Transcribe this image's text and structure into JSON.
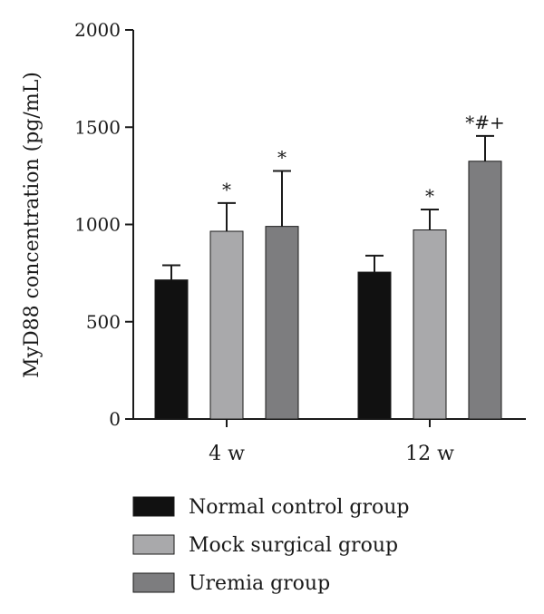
{
  "chart_data": {
    "type": "bar",
    "title": "",
    "xlabel": "",
    "ylabel": "MyD88 concentration (pg/mL)",
    "ylim": [
      0,
      2000
    ],
    "yticks": [
      0,
      500,
      1000,
      1500,
      2000
    ],
    "categories": [
      "4 w",
      "12 w"
    ],
    "series": [
      {
        "name": "Normal control group",
        "color": "#111111",
        "values": [
          715,
          755
        ],
        "errors": [
          75,
          85
        ],
        "labels": [
          "",
          ""
        ]
      },
      {
        "name": "Mock surgical group",
        "color": "#a9a9ab",
        "values": [
          965,
          972
        ],
        "errors": [
          145,
          105
        ],
        "labels": [
          "*",
          "*"
        ]
      },
      {
        "name": "Uremia group",
        "color": "#7d7d7f",
        "values": [
          990,
          1325
        ],
        "errors": [
          285,
          130
        ],
        "labels": [
          "*",
          "*#+"
        ]
      }
    ],
    "grid": false,
    "legend_position": "bottom"
  }
}
